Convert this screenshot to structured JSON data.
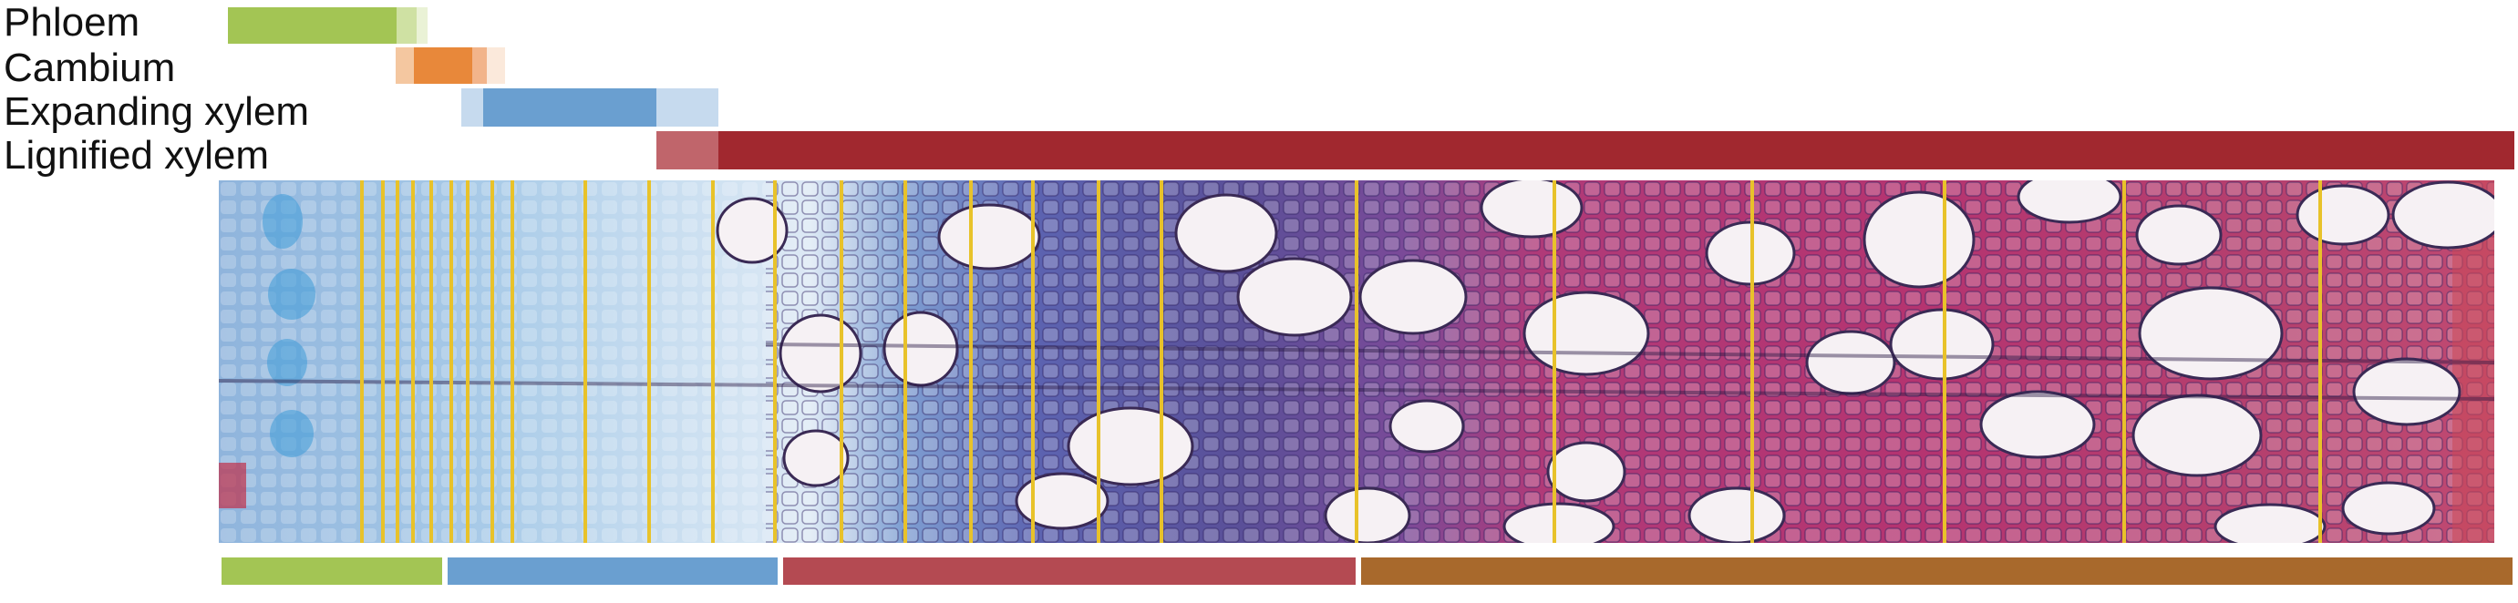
{
  "labels": {
    "phloem": "Phloem",
    "cambium": "Cambium",
    "expanding": "Expanding xylem",
    "lignified": "Lignified xylem"
  },
  "colors": {
    "phloem": "#a3c554",
    "phloem_light": "#cfe1a3",
    "cambium": "#e8883a",
    "cambium_light": "#f4c7a0",
    "expanding": "#6a9fd0",
    "expanding_light": "#c6daee",
    "lignified": "#a1282f",
    "lignified_light": "#c0656b",
    "zone_phloem": "#a3c554",
    "zone_expanding": "#6a9fd0",
    "zone_lignified": "#b44a52",
    "zone_mature": "#a8692c",
    "tissue_blue": "#9fc4e4",
    "tissue_purple": "#6a5a9c",
    "tissue_magenta": "#b0306a",
    "marker_line": "#e8c22a"
  },
  "micrograph_name": "wood-cross-section-image"
}
